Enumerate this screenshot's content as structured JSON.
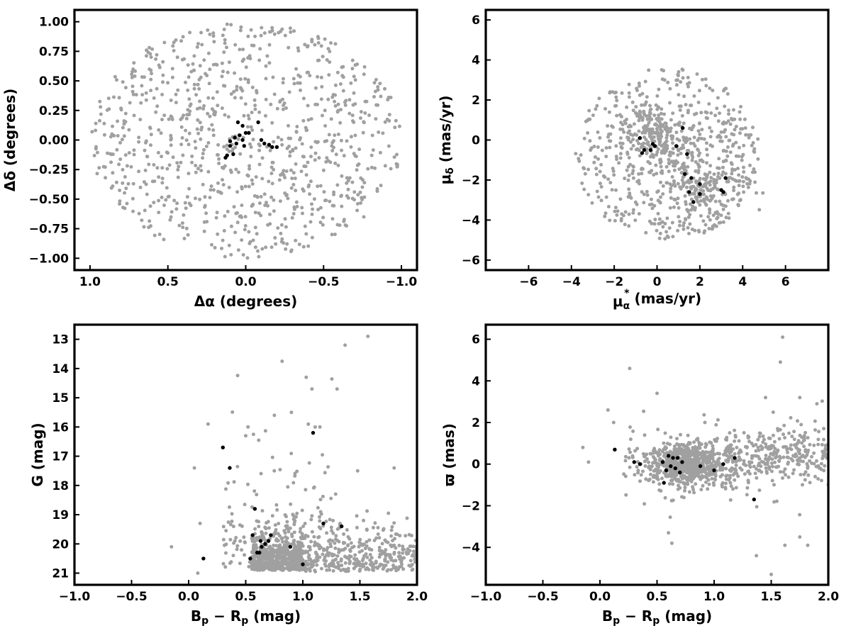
{
  "chart_data": [
    {
      "type": "scatter",
      "title": "",
      "xlabel": "Δα (degrees)",
      "ylabel": "Δδ (degrees)",
      "xlim": [
        1.1,
        -1.1
      ],
      "ylim": [
        -1.1,
        1.1
      ],
      "x_reversed": true,
      "xticks": [
        1.0,
        0.5,
        0.0,
        -0.5,
        -1.0
      ],
      "xtick_labels": [
        "1.0",
        "0.5",
        "0.0",
        "−0.5",
        "−1.0"
      ],
      "yticks": [
        1.0,
        0.75,
        0.5,
        0.25,
        0.0,
        -0.25,
        -0.5,
        -0.75,
        -1.0
      ],
      "ytick_labels": [
        "1.00",
        "0.75",
        "0.50",
        "0.25",
        "0.00",
        "−0.25",
        "−0.50",
        "−0.75",
        "−1.00"
      ],
      "grid": false,
      "series": [
        {
          "color": "#a0a0a0",
          "generated": {
            "kind": "disk",
            "n": 900,
            "cx": 0.0,
            "cy": 0.0,
            "r": 1.0,
            "seed": 11
          }
        },
        {
          "color": "#000000",
          "points": [
            [
              0.05,
              0.15
            ],
            [
              0.02,
              0.12
            ],
            [
              -0.08,
              0.15
            ],
            [
              0.0,
              0.06
            ],
            [
              -0.02,
              0.06
            ],
            [
              0.04,
              0.04
            ],
            [
              0.07,
              0.02
            ],
            [
              0.02,
              0.0
            ],
            [
              0.06,
              -0.03
            ],
            [
              0.1,
              -0.01
            ],
            [
              -0.1,
              0.0
            ],
            [
              -0.12,
              -0.03
            ],
            [
              0.1,
              -0.05
            ],
            [
              0.01,
              -0.05
            ],
            [
              0.08,
              -0.12
            ],
            [
              -0.17,
              -0.06
            ],
            [
              0.12,
              -0.13
            ],
            [
              0.13,
              -0.15
            ],
            [
              -0.2,
              -0.06
            ],
            [
              -0.15,
              -0.04
            ]
          ]
        }
      ]
    },
    {
      "type": "scatter",
      "title": "",
      "xlabel": "μα* (mas/yr)",
      "ylabel": "μδ (mas/yr)",
      "xlabel_parts": {
        "mu": "μ",
        "sub": "α",
        "sup": "*",
        "rest": "  (mas/yr)"
      },
      "ylabel_parts": {
        "mu": "μ",
        "sub": "δ",
        "rest": " (mas/yr)"
      },
      "xlim": [
        -8,
        8
      ],
      "ylim": [
        -6.5,
        6.5
      ],
      "xticks": [
        -6,
        -4,
        -2,
        0,
        2,
        4,
        6
      ],
      "xtick_labels": [
        "−6",
        "−4",
        "−2",
        "0",
        "2",
        "4",
        "6"
      ],
      "yticks": [
        -6,
        -4,
        -2,
        0,
        2,
        4,
        6
      ],
      "ytick_labels": [
        "−6",
        "−4",
        "−2",
        "0",
        "2",
        "4",
        "6"
      ],
      "grid": false,
      "series": [
        {
          "color": "#a0a0a0",
          "generated": {
            "kind": "ellipse-pm",
            "n": 900,
            "seed": 23
          }
        },
        {
          "color": "#000000",
          "points": [
            [
              -0.8,
              0.1
            ],
            [
              -0.2,
              -0.2
            ],
            [
              -0.1,
              -0.3
            ],
            [
              -0.6,
              -0.5
            ],
            [
              -0.7,
              -0.65
            ],
            [
              -0.3,
              -0.5
            ],
            [
              0.9,
              -0.3
            ],
            [
              1.2,
              0.6
            ],
            [
              1.4,
              -0.7
            ],
            [
              1.3,
              -1.7
            ],
            [
              1.6,
              -1.9
            ],
            [
              2.0,
              -2.2
            ],
            [
              1.5,
              -2.6
            ],
            [
              1.7,
              -3.1
            ],
            [
              2.0,
              -2.7
            ],
            [
              3.0,
              -2.5
            ],
            [
              3.1,
              -2.6
            ],
            [
              3.2,
              -1.9
            ]
          ]
        }
      ]
    },
    {
      "type": "scatter",
      "title": "",
      "xlabel": "Bp − Rp (mag)",
      "ylabel": "G (mag)",
      "xlim": [
        -1.0,
        2.0
      ],
      "ylim": [
        21.4,
        12.5
      ],
      "y_reversed": true,
      "xticks": [
        -1.0,
        -0.5,
        0.0,
        0.5,
        1.0,
        1.5,
        2.0
      ],
      "xtick_labels": [
        "−1.0",
        "−0.5",
        "0.0",
        "0.5",
        "1.0",
        "1.5",
        "2.0"
      ],
      "yticks": [
        21,
        20,
        19,
        18,
        17,
        16,
        15,
        14,
        13
      ],
      "ytick_labels": [
        "21",
        "20",
        "19",
        "18",
        "17",
        "16",
        "15",
        "14",
        "13"
      ],
      "grid": false,
      "series": [
        {
          "color": "#a0a0a0",
          "generated": {
            "kind": "cmd",
            "n": 1100,
            "seed": 37
          },
          "points": [
            [
              -0.15,
              20.1
            ],
            [
              0.08,
              21.0
            ],
            [
              0.1,
              19.3
            ],
            [
              0.17,
              15.9
            ],
            [
              0.05,
              17.4
            ],
            [
              0.5,
              16.3
            ],
            [
              0.52,
              16.0
            ],
            [
              1.08,
              14.7
            ],
            [
              1.03,
              14.3
            ],
            [
              1.3,
              14.7
            ],
            [
              1.37,
              13.2
            ],
            [
              1.57,
              12.9
            ],
            [
              0.9,
              15.5
            ],
            [
              0.75,
              17.5
            ],
            [
              1.15,
              16.0
            ],
            [
              1.48,
              17.5
            ],
            [
              1.8,
              17.4
            ]
          ]
        },
        {
          "color": "#000000",
          "points": [
            [
              0.13,
              20.5
            ],
            [
              0.54,
              20.5
            ],
            [
              0.6,
              20.3
            ],
            [
              0.62,
              20.3
            ],
            [
              0.64,
              20.1
            ],
            [
              0.67,
              20.0
            ],
            [
              0.63,
              19.9
            ],
            [
              0.7,
              19.9
            ],
            [
              0.72,
              19.7
            ],
            [
              0.56,
              19.7
            ],
            [
              0.58,
              18.8
            ],
            [
              0.36,
              17.4
            ],
            [
              0.3,
              16.7
            ],
            [
              1.0,
              20.7
            ],
            [
              0.89,
              20.1
            ],
            [
              1.18,
              19.3
            ],
            [
              1.34,
              19.4
            ],
            [
              1.09,
              16.2
            ]
          ]
        }
      ]
    },
    {
      "type": "scatter",
      "title": "",
      "xlabel": "Bp − Rp (mag)",
      "ylabel": "ϖ (mas)",
      "xlim": [
        -1.0,
        2.0
      ],
      "ylim": [
        -5.8,
        6.7
      ],
      "xticks": [
        -1.0,
        -0.5,
        0.0,
        0.5,
        1.0,
        1.5,
        2.0
      ],
      "xtick_labels": [
        "−1.0",
        "−0.5",
        "0.0",
        "0.5",
        "1.0",
        "1.5",
        "2.0"
      ],
      "yticks": [
        -4,
        -2,
        0,
        2,
        4,
        6
      ],
      "ytick_labels": [
        "−4",
        "−2",
        "0",
        "2",
        "4",
        "6"
      ],
      "grid": false,
      "series": [
        {
          "color": "#a0a0a0",
          "generated": {
            "kind": "plx",
            "n": 1100,
            "seed": 53
          },
          "points": [
            [
              -0.15,
              0.8
            ],
            [
              -0.1,
              0.1
            ],
            [
              0.07,
              2.6
            ],
            [
              0.12,
              2.0
            ],
            [
              0.26,
              4.6
            ],
            [
              0.5,
              3.4
            ],
            [
              1.6,
              6.1
            ],
            [
              1.58,
              4.9
            ],
            [
              1.5,
              -5.3
            ],
            [
              1.37,
              -4.4
            ],
            [
              1.62,
              -3.9
            ],
            [
              0.63,
              -3.8
            ],
            [
              0.6,
              -3.3
            ],
            [
              1.75,
              -3.5
            ],
            [
              1.82,
              -3.9
            ],
            [
              1.75,
              3.2
            ],
            [
              1.9,
              2.9
            ],
            [
              1.45,
              3.2
            ]
          ]
        },
        {
          "color": "#000000",
          "points": [
            [
              0.13,
              0.7
            ],
            [
              0.3,
              0.1
            ],
            [
              0.35,
              0.0
            ],
            [
              0.55,
              0.1
            ],
            [
              0.6,
              0.4
            ],
            [
              0.64,
              0.3
            ],
            [
              0.62,
              -0.1
            ],
            [
              0.58,
              -0.3
            ],
            [
              0.66,
              -0.2
            ],
            [
              0.7,
              -0.4
            ],
            [
              0.72,
              0.1
            ],
            [
              0.56,
              -0.9
            ],
            [
              0.68,
              0.3
            ],
            [
              0.88,
              -0.1
            ],
            [
              1.0,
              -0.3
            ],
            [
              1.08,
              0.0
            ],
            [
              1.18,
              0.3
            ],
            [
              1.35,
              -1.7
            ]
          ]
        }
      ]
    }
  ]
}
